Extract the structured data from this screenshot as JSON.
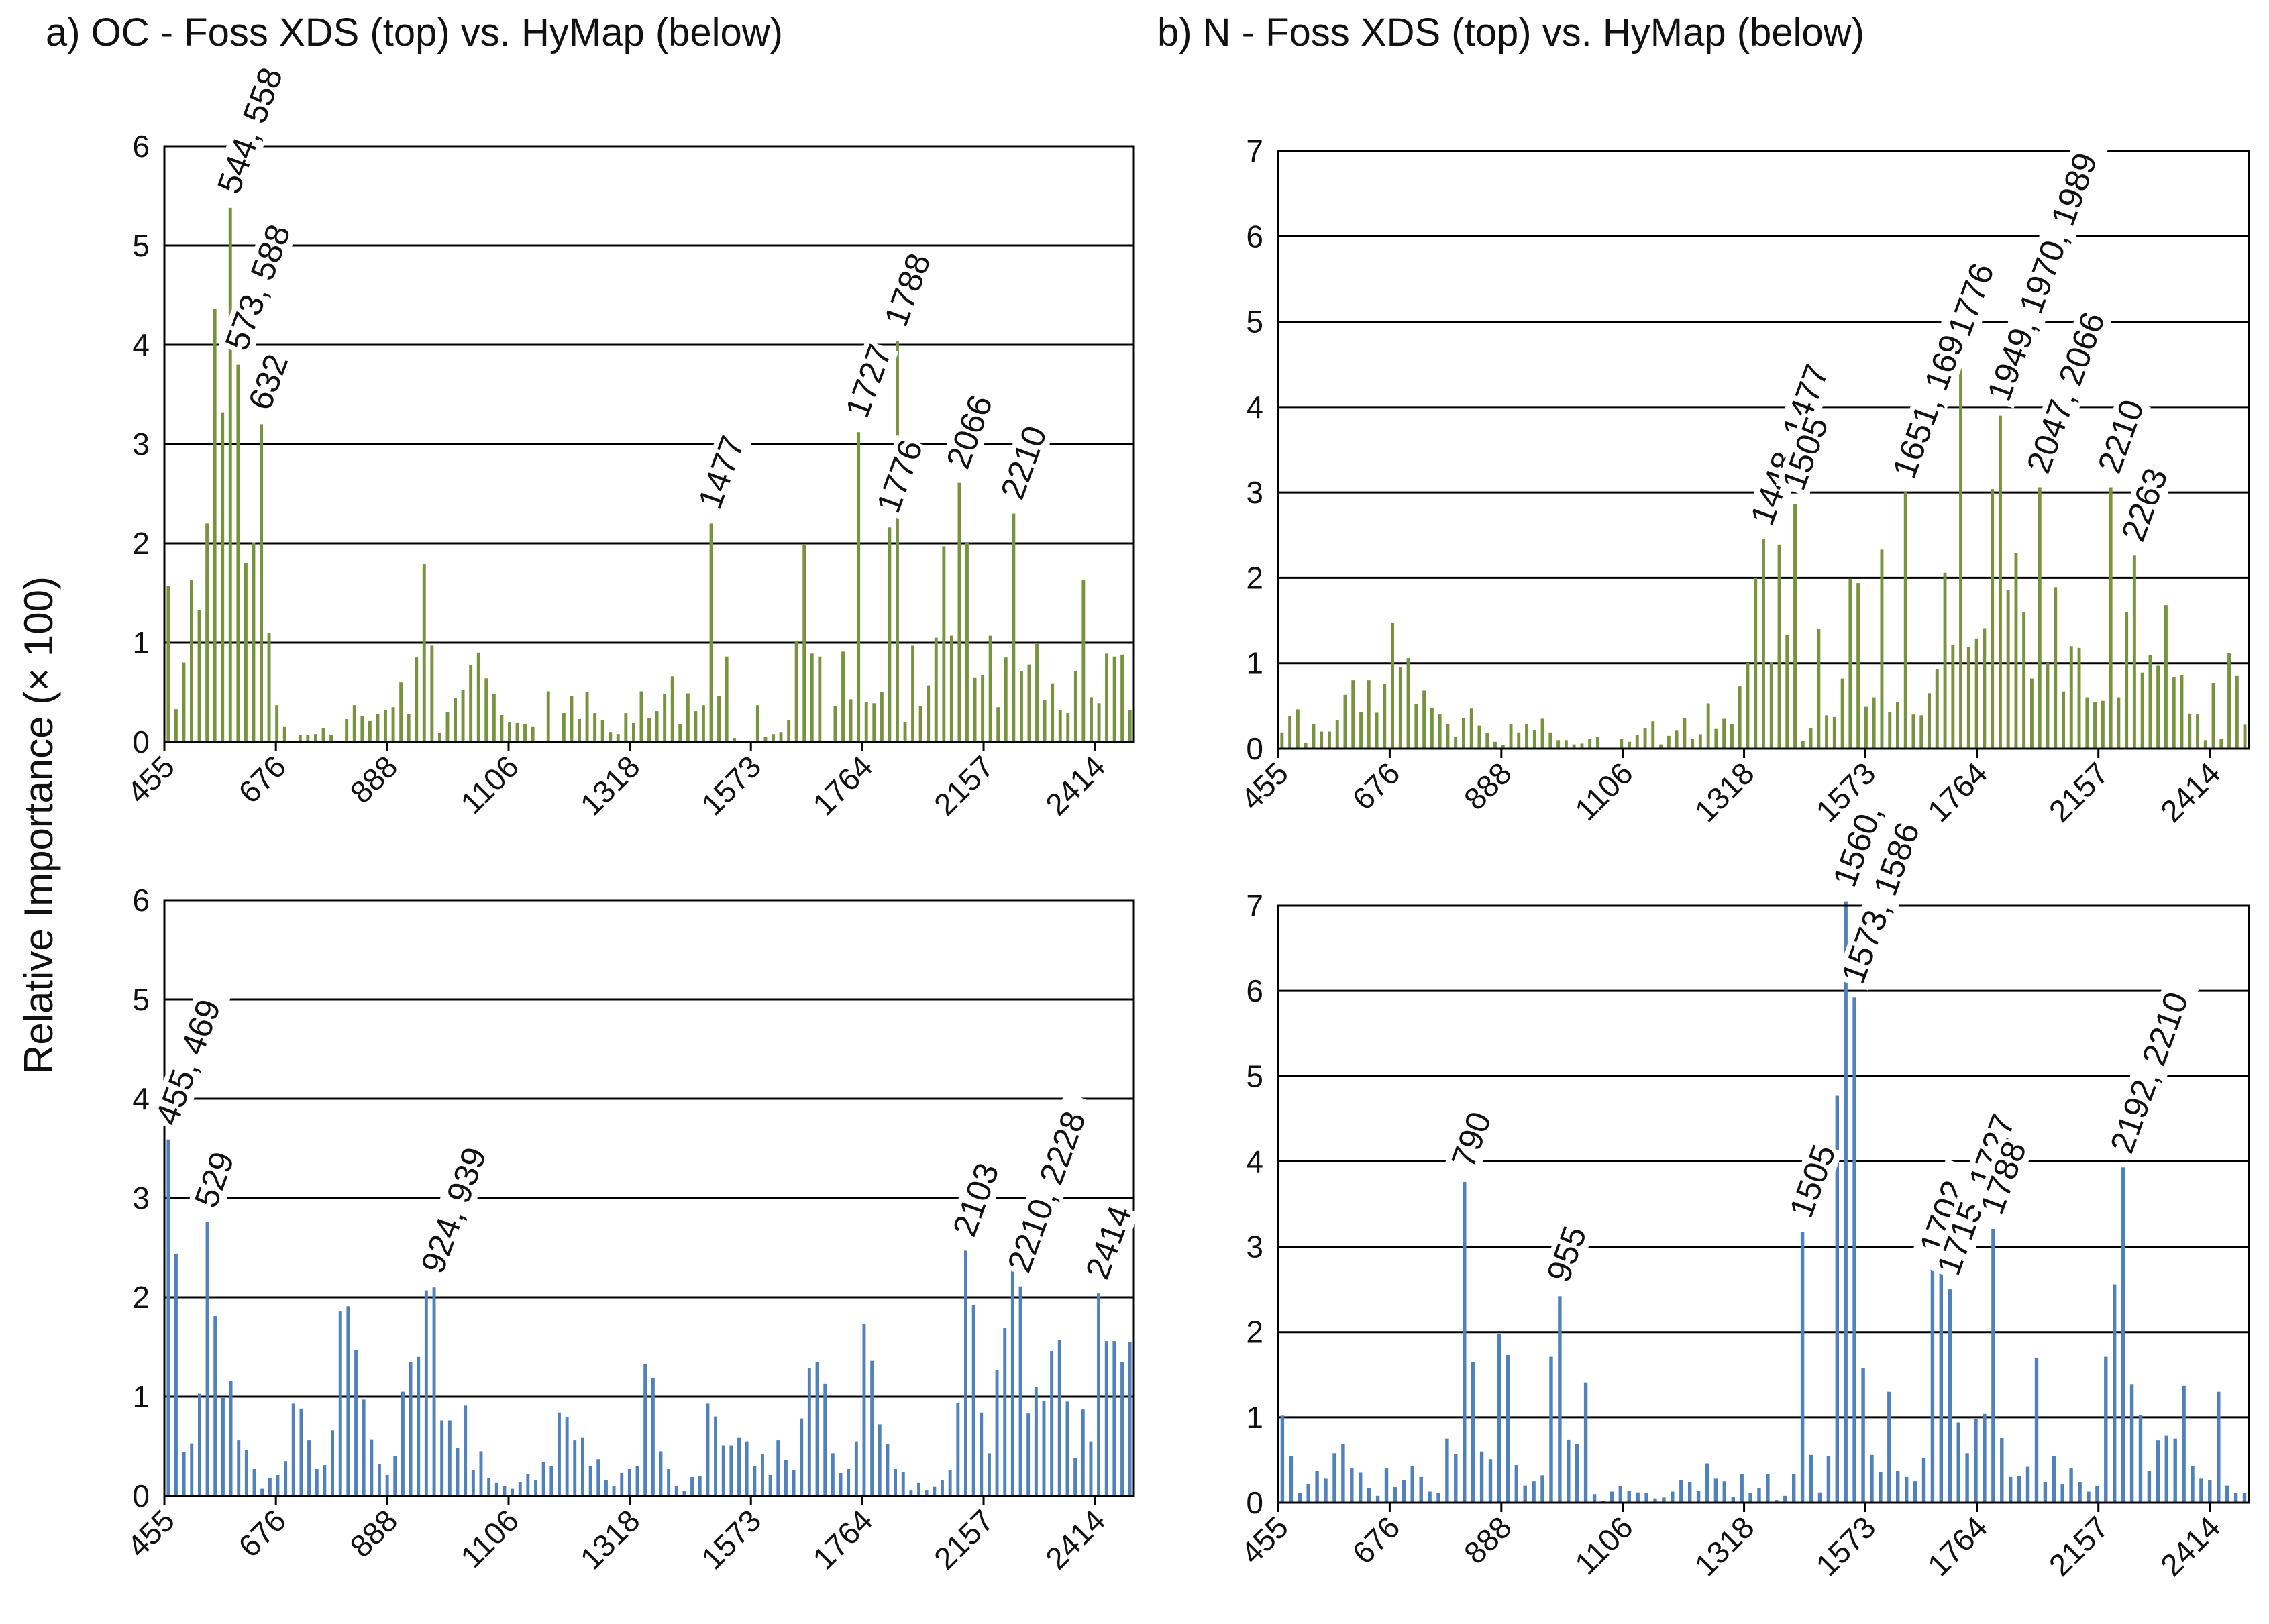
{
  "y_axis_label": "Relative Importance (× 100)",
  "panels": [
    {
      "title": "a)  OC - Foss XDS (top) vs. HyMap (below)"
    },
    {
      "title": "b)  N - Foss XDS (top) vs. HyMap (below)"
    }
  ],
  "colors": {
    "foss": "#77933C",
    "hymap": "#4F81BD",
    "grid": "#000000",
    "text": "#111111"
  },
  "chart_data": [
    {
      "id": "oc-foss",
      "type": "bar",
      "title": "OC - Foss XDS",
      "ylabel": "Relative Importance (× 100)",
      "ylim": [
        0,
        6
      ],
      "yticks": [
        0,
        1,
        2,
        3,
        4,
        5,
        6
      ],
      "xlabels": [
        "455",
        "676",
        "888",
        "1106",
        "1318",
        "1573",
        "1764",
        "2157",
        "2414"
      ],
      "values": [
        1.57,
        0.33,
        0.8,
        1.63,
        1.33,
        2.2,
        4.36,
        3.32,
        5.38,
        3.8,
        1.8,
        2.01,
        3.2,
        1.1,
        0.37,
        0.15,
        0,
        0.07,
        0.07,
        0.08,
        0.14,
        0.07,
        0,
        0.23,
        0.37,
        0.26,
        0.21,
        0.28,
        0.32,
        0.35,
        0.6,
        0.28,
        0.85,
        1.79,
        0.97,
        0.09,
        0.3,
        0.44,
        0.52,
        0.77,
        0.9,
        0.64,
        0.48,
        0.27,
        0.2,
        0.19,
        0.18,
        0.15,
        0,
        0.51,
        0,
        0.29,
        0.46,
        0.23,
        0.5,
        0.29,
        0.22,
        0.1,
        0.08,
        0.29,
        0.19,
        0.51,
        0.24,
        0.31,
        0.48,
        0.66,
        0.18,
        0.49,
        0.31,
        0.37,
        2.2,
        0.46,
        0.86,
        0.04,
        0,
        0,
        0.37,
        0.05,
        0.08,
        0.1,
        0.22,
        1.02,
        1.98,
        0.89,
        0.86,
        0,
        0.36,
        0.91,
        0.43,
        3.12,
        0.4,
        0.39,
        0.5,
        2.16,
        4.04,
        0.2,
        0.97,
        0.36,
        0.57,
        1.05,
        1.97,
        1.07,
        2.61,
        2.0,
        0.65,
        0.67,
        1.07,
        0.35,
        0.85,
        2.3,
        0.71,
        0.78,
        1.0,
        0.42,
        0.59,
        0.32,
        0.29,
        0.71,
        1.63,
        0.45,
        0.39,
        0.89,
        0.86,
        0.88,
        0.32
      ],
      "annotations": [
        {
          "text": "544, 558",
          "bar": 8
        },
        {
          "text": "573, 588",
          "bar": 9
        },
        {
          "text": "632",
          "bar": 12
        },
        {
          "text": "1477",
          "bar": 70
        },
        {
          "text": "1727",
          "bar": 89
        },
        {
          "text": "1788",
          "bar": 94
        },
        {
          "text": "1776",
          "bar": 93
        },
        {
          "text": "2066",
          "bar": 102
        },
        {
          "text": "2210",
          "bar": 109
        }
      ]
    },
    {
      "id": "oc-hymap",
      "type": "bar",
      "title": "OC - HyMap",
      "ylabel": "Relative Importance (× 100)",
      "ylim": [
        0,
        6
      ],
      "yticks": [
        0,
        1,
        2,
        3,
        4,
        5,
        6
      ],
      "xlabels": [
        "455",
        "676",
        "888",
        "1106",
        "1318",
        "1573",
        "1764",
        "2157",
        "2414"
      ],
      "values": [
        3.59,
        2.44,
        0.44,
        0.53,
        1.03,
        2.76,
        1.81,
        1.0,
        1.16,
        0.56,
        0.46,
        0.27,
        0.07,
        0.18,
        0.21,
        0.35,
        0.93,
        0.88,
        0.56,
        0.27,
        0.31,
        0.66,
        1.86,
        1.91,
        1.47,
        0.97,
        0.57,
        0.32,
        0.21,
        0.4,
        1.05,
        1.35,
        1.4,
        2.07,
        2.1,
        0.76,
        0.76,
        0.48,
        0.91,
        0.26,
        0.45,
        0.18,
        0.13,
        0.1,
        0.07,
        0.14,
        0.22,
        0.16,
        0.34,
        0.3,
        0.84,
        0.79,
        0.56,
        0.59,
        0.3,
        0.37,
        0.16,
        0.1,
        0.23,
        0.27,
        0.3,
        1.33,
        1.19,
        0.45,
        0.27,
        0.1,
        0.05,
        0.19,
        0.2,
        0.93,
        0.8,
        0.51,
        0.51,
        0.59,
        0.55,
        0.3,
        0.42,
        0.21,
        0.56,
        0.36,
        0.26,
        0.78,
        1.29,
        1.35,
        1.13,
        0.43,
        0.23,
        0.27,
        0.55,
        1.73,
        1.36,
        0.72,
        0.52,
        0.27,
        0.24,
        0.06,
        0.13,
        0.06,
        0.09,
        0.16,
        0.26,
        0.94,
        2.47,
        1.92,
        0.84,
        0.43,
        1.27,
        1.69,
        2.38,
        2.11,
        0.83,
        1.1,
        0.96,
        1.46,
        1.57,
        0.95,
        0.38,
        0.87,
        0.55,
        2.04,
        1.56,
        1.56,
        1.35,
        1.55
      ],
      "annotations": [
        {
          "text": "455, 469",
          "bar": 0
        },
        {
          "text": "529",
          "bar": 5
        },
        {
          "text": "924, 939",
          "bar": 34
        },
        {
          "text": "2103",
          "bar": 102
        },
        {
          "text": "2210, 2228",
          "bar": 109
        },
        {
          "text": "2414",
          "bar": 119
        }
      ]
    },
    {
      "id": "n-foss",
      "type": "bar",
      "title": "N - Foss XDS",
      "ylabel": "Relative Importance (× 100)",
      "ylim": [
        0,
        7
      ],
      "yticks": [
        0,
        1,
        2,
        3,
        4,
        5,
        6,
        7
      ],
      "xlabels": [
        "455",
        "676",
        "888",
        "1106",
        "1318",
        "1573",
        "1764",
        "2157",
        "2414"
      ],
      "values": [
        0.19,
        0.38,
        0.46,
        0.07,
        0.29,
        0.2,
        0.2,
        0.33,
        0.63,
        0.8,
        0.43,
        0.8,
        0.42,
        0.76,
        1.47,
        0.95,
        1.06,
        0.52,
        0.68,
        0.48,
        0.4,
        0.29,
        0.14,
        0.36,
        0.47,
        0.27,
        0.18,
        0.08,
        0.04,
        0.29,
        0.19,
        0.29,
        0.22,
        0.35,
        0.19,
        0.1,
        0.1,
        0.05,
        0.06,
        0.11,
        0.14,
        0,
        0,
        0.11,
        0.08,
        0.16,
        0.24,
        0.32,
        0.05,
        0.15,
        0.21,
        0.36,
        0.11,
        0.17,
        0.53,
        0.23,
        0.35,
        0.29,
        0.73,
        1.0,
        2.0,
        2.45,
        1.01,
        2.39,
        1.33,
        2.86,
        0.09,
        0.24,
        1.4,
        0.39,
        0.37,
        0.82,
        1.99,
        1.94,
        0.49,
        0.6,
        2.33,
        0.43,
        0.55,
        3.0,
        0.4,
        0.39,
        0.65,
        0.93,
        2.06,
        1.21,
        4.66,
        1.19,
        1.29,
        1.41,
        3.04,
        3.9,
        1.86,
        2.29,
        1.6,
        0.82,
        3.06,
        1.0,
        1.89,
        0.67,
        1.2,
        1.18,
        0.6,
        0.55,
        0.56,
        3.06,
        0.6,
        1.6,
        2.26,
        0.89,
        1.1,
        0.97,
        1.68,
        0.84,
        0.86,
        0.41,
        0.4,
        0.1,
        0.77,
        0.11,
        1.12,
        0.85,
        0.28
      ],
      "annotations": [
        {
          "text": "1448, 1477",
          "bar": 61
        },
        {
          "text": "1505",
          "bar": 65
        },
        {
          "text": "1651, 1690",
          "bar": 79
        },
        {
          "text": "1776",
          "bar": 86
        },
        {
          "text": "1949, 1970, 1989",
          "bar": 91
        },
        {
          "text": "2047, 2066",
          "bar": 96
        },
        {
          "text": "2210",
          "bar": 105
        },
        {
          "text": "2263",
          "bar": 108
        }
      ]
    },
    {
      "id": "n-hymap",
      "type": "bar",
      "title": "N - HyMap",
      "ylabel": "Relative Importance (× 100)",
      "ylim": [
        0,
        7
      ],
      "yticks": [
        0,
        1,
        2,
        3,
        4,
        5,
        6,
        7
      ],
      "xlabels": [
        "455",
        "676",
        "888",
        "1106",
        "1318",
        "1573",
        "1764",
        "2157",
        "2414"
      ],
      "values": [
        1.02,
        0.55,
        0.11,
        0.22,
        0.37,
        0.28,
        0.58,
        0.69,
        0.4,
        0.35,
        0.17,
        0.08,
        0.4,
        0.18,
        0.26,
        0.43,
        0.3,
        0.13,
        0.11,
        0.75,
        0.57,
        3.76,
        1.65,
        0.6,
        0.51,
        1.98,
        1.73,
        0.44,
        0.2,
        0.25,
        0.32,
        1.71,
        2.42,
        0.74,
        0.69,
        1.41,
        0.1,
        0.02,
        0.13,
        0.19,
        0.14,
        0.12,
        0.11,
        0.05,
        0.06,
        0.13,
        0.26,
        0.24,
        0.14,
        0.46,
        0.28,
        0.25,
        0.07,
        0.33,
        0.11,
        0.17,
        0.33,
        0.03,
        0.08,
        0.33,
        3.17,
        0.56,
        0.12,
        0.55,
        4.77,
        7.05,
        5.92,
        1.58,
        0.56,
        0.36,
        1.3,
        0.37,
        0.3,
        0.25,
        0.52,
        2.75,
        2.82,
        2.5,
        0.94,
        0.58,
        0.98,
        1.04,
        3.21,
        0.76,
        0.3,
        0.31,
        0.42,
        1.7,
        0.24,
        0.55,
        0.22,
        0.4,
        0.24,
        0.13,
        0.19,
        1.71,
        2.56,
        3.93,
        1.39,
        1.03,
        0.37,
        0.73,
        0.79,
        0.75,
        1.37,
        0.43,
        0.28,
        0.26,
        1.3,
        0.2,
        0.11,
        0.11
      ],
      "annotations": [
        {
          "text": "790",
          "bar": 21
        },
        {
          "text": "955",
          "bar": 32
        },
        {
          "text": "1505",
          "bar": 60
        },
        {
          "text": "1560,",
          "bar": 65
        },
        {
          "text": "1573, 1586",
          "bar": 66
        },
        {
          "text": "1702,",
          "bar": 75
        },
        {
          "text": "1715, 1727",
          "bar": 77
        },
        {
          "text": "1788",
          "bar": 82
        },
        {
          "text": "2192, 2210",
          "bar": 97
        }
      ]
    }
  ]
}
